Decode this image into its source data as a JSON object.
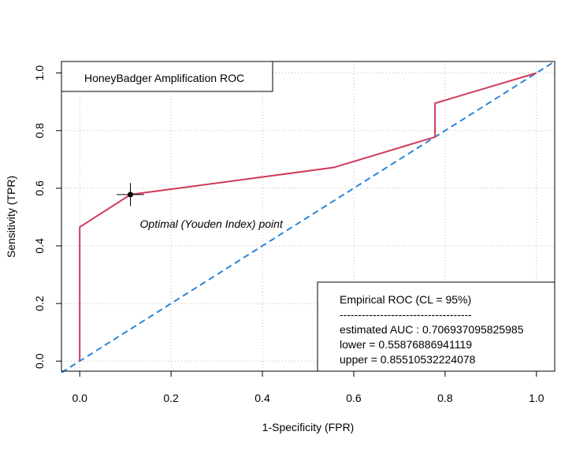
{
  "chart_data": {
    "type": "line",
    "xlabel": "1-Specificity (FPR)",
    "ylabel": "Sensitivity (TPR)",
    "xlim": [
      -0.04,
      1.04
    ],
    "ylim": [
      -0.035,
      1.04
    ],
    "xticks": [
      0.0,
      0.2,
      0.4,
      0.6,
      0.8,
      1.0
    ],
    "yticks": [
      0.0,
      0.2,
      0.4,
      0.6,
      0.8,
      1.0
    ],
    "xtick_labels": [
      "0.0",
      "0.2",
      "0.4",
      "0.6",
      "0.8",
      "1.0"
    ],
    "ytick_labels": [
      "0.0",
      "0.2",
      "0.4",
      "0.6",
      "0.8",
      "1.0"
    ],
    "grid": true,
    "series": [
      {
        "name": "Empirical ROC",
        "color": "#d03a5a",
        "style": "solid",
        "x": [
          0.0,
          0.0,
          0.111,
          0.556,
          0.778,
          0.778,
          1.0
        ],
        "y": [
          0.0,
          0.465,
          0.578,
          0.672,
          0.778,
          0.895,
          1.0
        ]
      },
      {
        "name": "",
        "color": "#2a86d8",
        "style": "dashed",
        "x": [
          -0.04,
          1.04
        ],
        "y": [
          -0.04,
          1.04
        ]
      }
    ],
    "optimal_point": {
      "x": 0.111,
      "y": 0.578,
      "x_err": 0.03,
      "y_err": 0.04,
      "label": "Optimal (Youden Index) point"
    },
    "title_box": {
      "text": "HoneyBadger Amplification ROC",
      "placement": "top-left"
    },
    "stats_box": {
      "placement": "bottom-right",
      "lines": [
        "Empirical ROC (CL = 95%)",
        "------------------------------------",
        "estimated AUC : 0.706937095825985",
        "lower = 0.55876886941119",
        "upper = 0.85510532224078"
      ]
    }
  }
}
